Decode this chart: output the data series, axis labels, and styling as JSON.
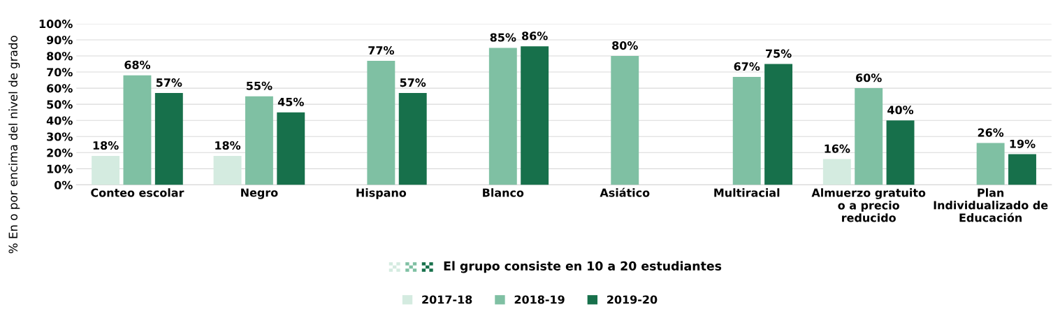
{
  "chart_data": {
    "type": "bar",
    "ylabel": "% En o por encima del nivel de grado",
    "categories": [
      "Conteo escolar",
      "Negro",
      "Hispano",
      "Blanco",
      "Asiático",
      "Multiracial",
      "Almuerzo gratuito\no a precio\nreducido",
      "Plan\nIndividualizado de\nEducación"
    ],
    "series": [
      {
        "name": "2017-18",
        "color": "#d4ebe0",
        "values": [
          18,
          18,
          null,
          null,
          null,
          null,
          16,
          null
        ],
        "value_labels": [
          "18%",
          "18%",
          null,
          null,
          null,
          null,
          "16%",
          null
        ]
      },
      {
        "name": "2018-19",
        "color": "#7fc0a3",
        "values": [
          68,
          55,
          77,
          85,
          80,
          67,
          60,
          26
        ],
        "value_labels": [
          "68%",
          "55%",
          "77%",
          "85%",
          "80%",
          "67%",
          "60%",
          "26%"
        ]
      },
      {
        "name": "2019-20",
        "color": "#17704b",
        "values": [
          57,
          45,
          57,
          86,
          null,
          75,
          40,
          19
        ],
        "value_labels": [
          "57%",
          "45%",
          "57%",
          "86%",
          null,
          "75%",
          "40%",
          "19%"
        ]
      }
    ],
    "ylim": [
      0,
      100
    ],
    "yticks": [
      {
        "value": 0,
        "label": "0%"
      },
      {
        "value": 10,
        "label": "10%"
      },
      {
        "value": 20,
        "label": "20%"
      },
      {
        "value": 30,
        "label": "30%"
      },
      {
        "value": 40,
        "label": "40%"
      },
      {
        "value": 50,
        "label": "50%"
      },
      {
        "value": 60,
        "label": "60%"
      },
      {
        "value": 70,
        "label": "70%"
      },
      {
        "value": 80,
        "label": "80%"
      },
      {
        "value": 90,
        "label": "90%"
      },
      {
        "value": 100,
        "label": "100%"
      }
    ],
    "grid": "y",
    "legend": "bottom",
    "annotations": [
      "El grupo consiste en 10 a 20 estudiantes"
    ]
  }
}
